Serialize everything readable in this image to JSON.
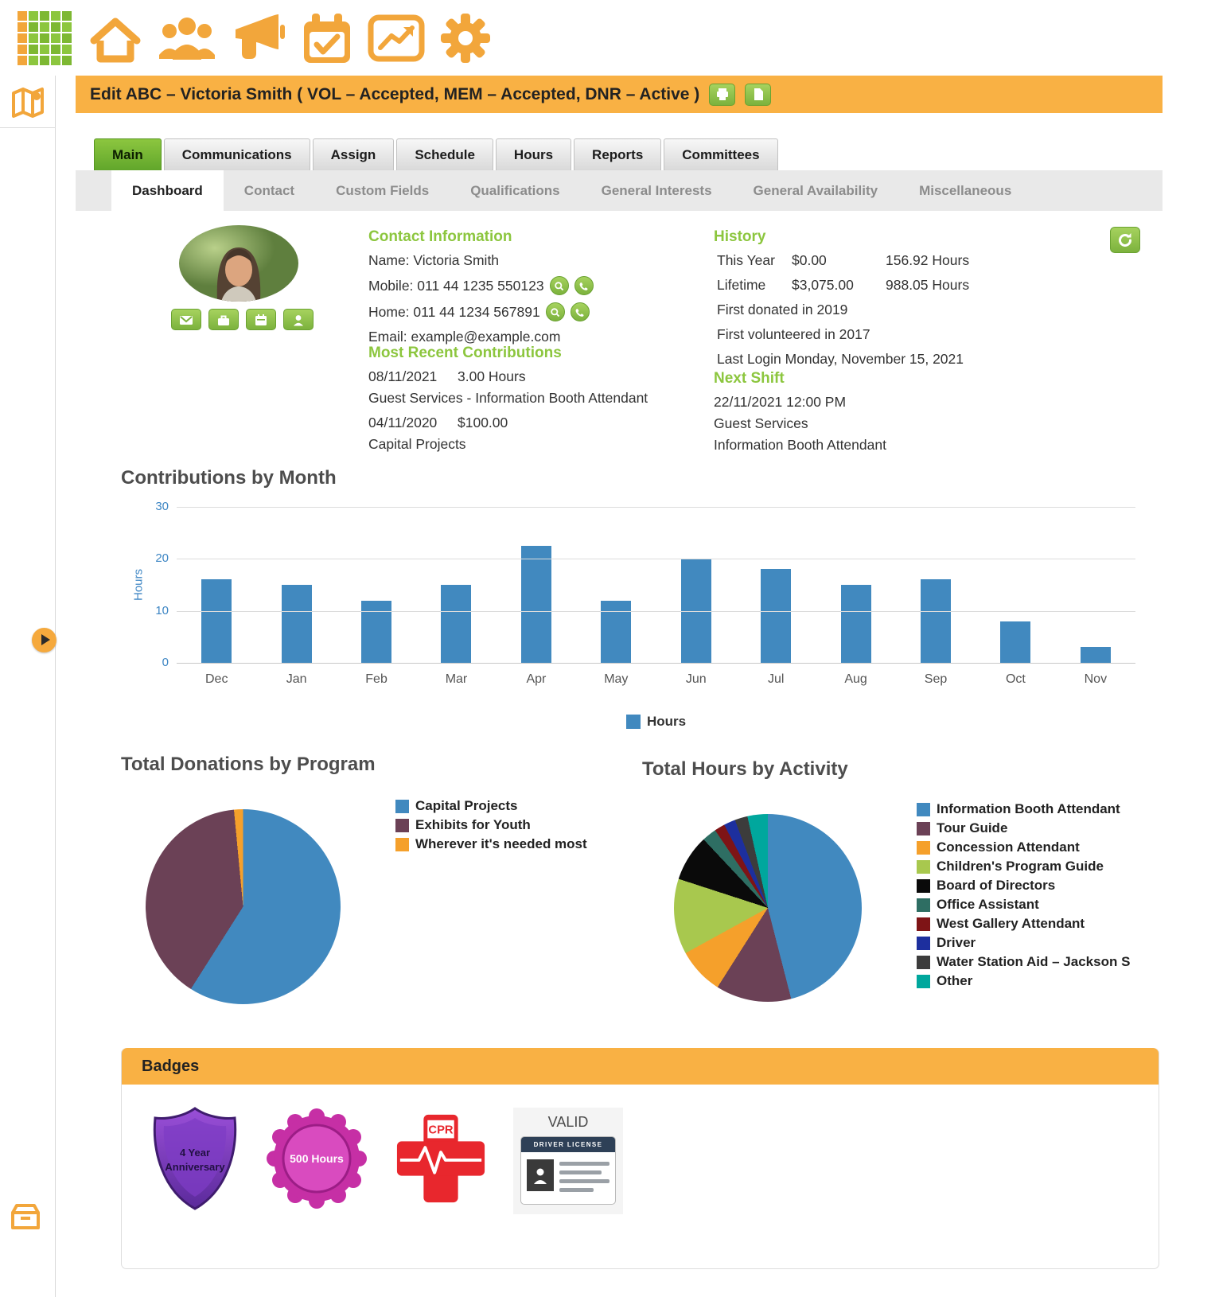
{
  "window": {
    "title_bar": "Edit ABC – Victoria Smith ( VOL – Accepted, MEM – Accepted, DNR – Active )"
  },
  "toolbar": {
    "icons": [
      "app-grid-icon",
      "home-icon",
      "people-icon",
      "megaphone-icon",
      "calendar-check-icon",
      "chart-icon",
      "gear-icon"
    ]
  },
  "sidebar": {
    "icons": [
      "map-icon",
      "expand-arrow-icon",
      "storage-box-icon"
    ]
  },
  "tabs": [
    {
      "label": "Main",
      "active": true
    },
    {
      "label": "Communications",
      "active": false
    },
    {
      "label": "Assign",
      "active": false
    },
    {
      "label": "Schedule",
      "active": false
    },
    {
      "label": "Hours",
      "active": false
    },
    {
      "label": "Reports",
      "active": false
    },
    {
      "label": "Committees",
      "active": false
    }
  ],
  "subtabs": [
    {
      "label": "Dashboard",
      "active": true
    },
    {
      "label": "Contact",
      "active": false
    },
    {
      "label": "Custom Fields",
      "active": false
    },
    {
      "label": "Qualifications",
      "active": false
    },
    {
      "label": "General Interests",
      "active": false
    },
    {
      "label": "General Availability",
      "active": false
    },
    {
      "label": "Miscellaneous",
      "active": false
    }
  ],
  "contact": {
    "heading": "Contact Information",
    "name": "Name: Victoria Smith",
    "mobile": "Mobile: 011 44 1235 550123",
    "home": "Home: 011 44 1234 567891",
    "email": "Email: example@example.com"
  },
  "recent_contributions": {
    "heading": "Most Recent Contributions",
    "entries": [
      {
        "date": "08/11/2021",
        "value": "3.00 Hours",
        "detail": "Guest Services - Information Booth Attendant"
      },
      {
        "date": "04/11/2020",
        "value": "$100.00",
        "detail": "Capital Projects"
      }
    ]
  },
  "history": {
    "heading": "History",
    "rows": [
      {
        "label": "This Year",
        "amount": "$0.00",
        "hours": "156.92 Hours"
      },
      {
        "label": "Lifetime",
        "amount": "$3,075.00",
        "hours": "988.05 Hours"
      }
    ],
    "lines": [
      "First donated in 2019",
      "First volunteered in 2017",
      "Last Login Monday, November 15, 2021"
    ]
  },
  "next_shift": {
    "heading": "Next Shift",
    "lines": [
      "22/11/2021 12:00 PM",
      "Guest Services",
      "Information Booth Attendant"
    ]
  },
  "chart_data": [
    {
      "type": "bar",
      "title": "Contributions by Month",
      "categories": [
        "Dec",
        "Jan",
        "Feb",
        "Mar",
        "Apr",
        "May",
        "Jun",
        "Jul",
        "Aug",
        "Sep",
        "Oct",
        "Nov"
      ],
      "values": [
        16,
        15,
        12,
        15,
        22.5,
        12,
        20,
        18,
        15,
        16,
        8,
        3
      ],
      "xlabel": "",
      "ylabel": "Hours",
      "ylim": [
        0,
        30
      ],
      "yticks": [
        0,
        10,
        20,
        30
      ],
      "bar_color": "#4189BF",
      "legend": [
        "Hours"
      ],
      "legend_position": "bottom",
      "grid": true
    },
    {
      "type": "pie",
      "title": "Total Donations by Program",
      "slices": [
        {
          "label": "Capital Projects",
          "value": 59,
          "color": "#4189BF"
        },
        {
          "label": "Exhibits for Youth",
          "value": 39.5,
          "color": "#6B4156"
        },
        {
          "label": "Wherever it's needed most",
          "value": 1.5,
          "color": "#F5A02B"
        }
      ],
      "legend_position": "right"
    },
    {
      "type": "pie",
      "title": "Total Hours by Activity",
      "slices": [
        {
          "label": "Information Booth Attendant",
          "value": 46,
          "color": "#4189BF"
        },
        {
          "label": "Tour Guide",
          "value": 13,
          "color": "#6B4156"
        },
        {
          "label": "Concession Attendant",
          "value": 8,
          "color": "#F5A02B"
        },
        {
          "label": "Children's Program Guide",
          "value": 13,
          "color": "#A8C84E"
        },
        {
          "label": "Board of Directors",
          "value": 8,
          "color": "#0A0A0A"
        },
        {
          "label": "Office Assistant",
          "value": 2.5,
          "color": "#2E6E63"
        },
        {
          "label": "West Gallery Attendant",
          "value": 1.8,
          "color": "#7E1416"
        },
        {
          "label": "Driver",
          "value": 2,
          "color": "#1D2F9E"
        },
        {
          "label": "Water Station Aid – Jackson S",
          "value": 2.2,
          "color": "#3C3C3C"
        },
        {
          "label": "Other",
          "value": 3.5,
          "color": "#00A79D"
        }
      ],
      "legend_position": "right"
    }
  ],
  "badges": {
    "heading": "Badges",
    "items": [
      {
        "name": "4-year-anniversary",
        "lines": [
          "4 Year",
          "Anniversary"
        ]
      },
      {
        "name": "500-hours",
        "lines": [
          "500 Hours"
        ]
      },
      {
        "name": "cpr",
        "lines": [
          "CPR"
        ]
      },
      {
        "name": "driver-license",
        "lines": [
          "VALID",
          "DRIVER LICENSE"
        ]
      }
    ]
  }
}
